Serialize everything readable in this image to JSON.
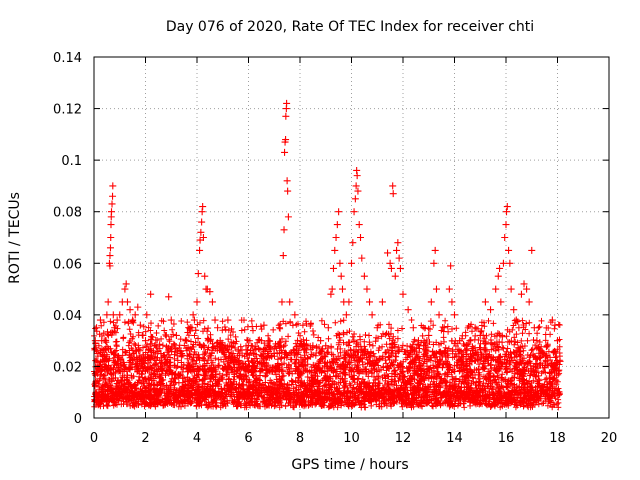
{
  "chart_data": {
    "type": "scatter",
    "title": "Day 076 of 2020, Rate Of TEC Index for receiver chti",
    "xlabel": "GPS time / hours",
    "ylabel": "ROTI / TECUs",
    "xlim": [
      0,
      20
    ],
    "ylim": [
      0,
      0.14
    ],
    "xticks": [
      0,
      2,
      4,
      6,
      8,
      10,
      12,
      14,
      16,
      18,
      20
    ],
    "xtick_labels": [
      "0",
      "2",
      "4",
      "6",
      "8",
      "10",
      "12",
      "14",
      "16",
      "18",
      "20"
    ],
    "yticks": [
      0,
      0.02,
      0.04,
      0.06,
      0.08,
      0.1,
      0.12,
      0.14
    ],
    "ytick_labels": [
      "0",
      "0.02",
      "0.04",
      "0.06",
      "0.08",
      "0.1",
      "0.12",
      "0.14"
    ],
    "grid": true,
    "marker": "+",
    "marker_color": "#ff0000",
    "series": [
      {
        "name": "ROTI",
        "points": [
          [
            0.05,
            0.03
          ],
          [
            0.1,
            0.035
          ],
          [
            0.15,
            0.025
          ],
          [
            0.2,
            0.02
          ],
          [
            0.25,
            0.038
          ],
          [
            0.3,
            0.03
          ],
          [
            0.35,
            0.022
          ],
          [
            0.45,
            0.03
          ],
          [
            0.5,
            0.04
          ],
          [
            0.55,
            0.045
          ],
          [
            0.6,
            0.06
          ],
          [
            0.62,
            0.063
          ],
          [
            0.64,
            0.066
          ],
          [
            0.65,
            0.07
          ],
          [
            0.66,
            0.075
          ],
          [
            0.67,
            0.078
          ],
          [
            0.68,
            0.08
          ],
          [
            0.7,
            0.083
          ],
          [
            0.72,
            0.086
          ],
          [
            0.73,
            0.09
          ],
          [
            0.62,
            0.059
          ],
          [
            0.75,
            0.04
          ],
          [
            0.8,
            0.035
          ],
          [
            0.9,
            0.038
          ],
          [
            1.0,
            0.04
          ],
          [
            1.1,
            0.045
          ],
          [
            1.2,
            0.05
          ],
          [
            1.25,
            0.052
          ],
          [
            1.3,
            0.045
          ],
          [
            1.4,
            0.042
          ],
          [
            1.5,
            0.038
          ],
          [
            1.6,
            0.04
          ],
          [
            1.7,
            0.043
          ],
          [
            1.8,
            0.036
          ],
          [
            1.9,
            0.032
          ],
          [
            2.0,
            0.03
          ],
          [
            2.05,
            0.04
          ],
          [
            2.2,
            0.048
          ],
          [
            2.4,
            0.028
          ],
          [
            2.6,
            0.025
          ],
          [
            2.9,
            0.047
          ],
          [
            3.0,
            0.038
          ],
          [
            3.2,
            0.032
          ],
          [
            3.4,
            0.025
          ],
          [
            3.6,
            0.03
          ],
          [
            3.8,
            0.035
          ],
          [
            3.85,
            0.04
          ],
          [
            3.9,
            0.038
          ],
          [
            3.95,
            0.034
          ],
          [
            4.0,
            0.045
          ],
          [
            4.05,
            0.056
          ],
          [
            4.1,
            0.065
          ],
          [
            4.12,
            0.069
          ],
          [
            4.15,
            0.072
          ],
          [
            4.18,
            0.076
          ],
          [
            4.2,
            0.08
          ],
          [
            4.22,
            0.082
          ],
          [
            4.25,
            0.07
          ],
          [
            4.3,
            0.055
          ],
          [
            4.35,
            0.05
          ],
          [
            4.4,
            0.05
          ],
          [
            4.5,
            0.049
          ],
          [
            4.6,
            0.045
          ],
          [
            4.7,
            0.038
          ],
          [
            4.8,
            0.035
          ],
          [
            4.9,
            0.03
          ],
          [
            5.0,
            0.028
          ],
          [
            5.2,
            0.038
          ],
          [
            5.4,
            0.025
          ],
          [
            5.6,
            0.022
          ],
          [
            5.8,
            0.02
          ],
          [
            6.0,
            0.022
          ],
          [
            6.2,
            0.025
          ],
          [
            6.5,
            0.03
          ],
          [
            6.6,
            0.036
          ],
          [
            6.8,
            0.03
          ],
          [
            7.0,
            0.027
          ],
          [
            7.2,
            0.035
          ],
          [
            7.3,
            0.045
          ],
          [
            7.35,
            0.063
          ],
          [
            7.38,
            0.073
          ],
          [
            7.4,
            0.103
          ],
          [
            7.42,
            0.107
          ],
          [
            7.44,
            0.108
          ],
          [
            7.45,
            0.117
          ],
          [
            7.47,
            0.12
          ],
          [
            7.48,
            0.122
          ],
          [
            7.5,
            0.092
          ],
          [
            7.52,
            0.088
          ],
          [
            7.55,
            0.078
          ],
          [
            7.6,
            0.045
          ],
          [
            7.8,
            0.04
          ],
          [
            8.0,
            0.028
          ],
          [
            8.2,
            0.027
          ],
          [
            8.5,
            0.028
          ],
          [
            8.8,
            0.03
          ],
          [
            9.0,
            0.028
          ],
          [
            9.1,
            0.035
          ],
          [
            9.2,
            0.048
          ],
          [
            9.25,
            0.05
          ],
          [
            9.3,
            0.058
          ],
          [
            9.35,
            0.065
          ],
          [
            9.4,
            0.07
          ],
          [
            9.45,
            0.075
          ],
          [
            9.5,
            0.08
          ],
          [
            9.55,
            0.06
          ],
          [
            9.6,
            0.055
          ],
          [
            9.65,
            0.05
          ],
          [
            9.7,
            0.045
          ],
          [
            9.8,
            0.04
          ],
          [
            9.9,
            0.045
          ],
          [
            10.0,
            0.06
          ],
          [
            10.05,
            0.068
          ],
          [
            10.1,
            0.08
          ],
          [
            10.15,
            0.085
          ],
          [
            10.18,
            0.09
          ],
          [
            10.2,
            0.096
          ],
          [
            10.22,
            0.094
          ],
          [
            10.25,
            0.088
          ],
          [
            10.3,
            0.075
          ],
          [
            10.35,
            0.07
          ],
          [
            10.4,
            0.062
          ],
          [
            10.5,
            0.055
          ],
          [
            10.6,
            0.05
          ],
          [
            10.7,
            0.045
          ],
          [
            10.8,
            0.04
          ],
          [
            11.0,
            0.035
          ],
          [
            11.2,
            0.045
          ],
          [
            11.4,
            0.064
          ],
          [
            11.5,
            0.06
          ],
          [
            11.55,
            0.058
          ],
          [
            11.6,
            0.09
          ],
          [
            11.62,
            0.087
          ],
          [
            11.7,
            0.055
          ],
          [
            11.75,
            0.065
          ],
          [
            11.8,
            0.068
          ],
          [
            11.85,
            0.062
          ],
          [
            11.9,
            0.058
          ],
          [
            12.0,
            0.048
          ],
          [
            12.2,
            0.042
          ],
          [
            12.4,
            0.035
          ],
          [
            12.6,
            0.03
          ],
          [
            12.8,
            0.028
          ],
          [
            13.0,
            0.032
          ],
          [
            13.1,
            0.045
          ],
          [
            13.2,
            0.06
          ],
          [
            13.25,
            0.065
          ],
          [
            13.3,
            0.05
          ],
          [
            13.4,
            0.04
          ],
          [
            13.6,
            0.035
          ],
          [
            13.8,
            0.05
          ],
          [
            13.85,
            0.059
          ],
          [
            13.9,
            0.045
          ],
          [
            14.0,
            0.04
          ],
          [
            14.2,
            0.03
          ],
          [
            14.4,
            0.028
          ],
          [
            14.6,
            0.03
          ],
          [
            14.8,
            0.035
          ],
          [
            15.0,
            0.032
          ],
          [
            15.2,
            0.045
          ],
          [
            15.4,
            0.042
          ],
          [
            15.6,
            0.05
          ],
          [
            15.7,
            0.055
          ],
          [
            15.75,
            0.058
          ],
          [
            15.8,
            0.045
          ],
          [
            15.9,
            0.06
          ],
          [
            15.95,
            0.07
          ],
          [
            16.0,
            0.075
          ],
          [
            16.02,
            0.08
          ],
          [
            16.05,
            0.082
          ],
          [
            16.1,
            0.065
          ],
          [
            16.15,
            0.06
          ],
          [
            16.2,
            0.05
          ],
          [
            16.3,
            0.042
          ],
          [
            16.4,
            0.038
          ],
          [
            16.5,
            0.035
          ],
          [
            16.6,
            0.048
          ],
          [
            16.7,
            0.052
          ],
          [
            16.8,
            0.05
          ],
          [
            16.9,
            0.045
          ],
          [
            17.0,
            0.065
          ],
          [
            17.1,
            0.035
          ],
          [
            17.2,
            0.03
          ],
          [
            17.4,
            0.025
          ],
          [
            17.6,
            0.028
          ],
          [
            17.8,
            0.038
          ],
          [
            17.9,
            0.036
          ],
          [
            18.0,
            0.03
          ],
          [
            18.1,
            0.022
          ]
        ]
      }
    ]
  }
}
